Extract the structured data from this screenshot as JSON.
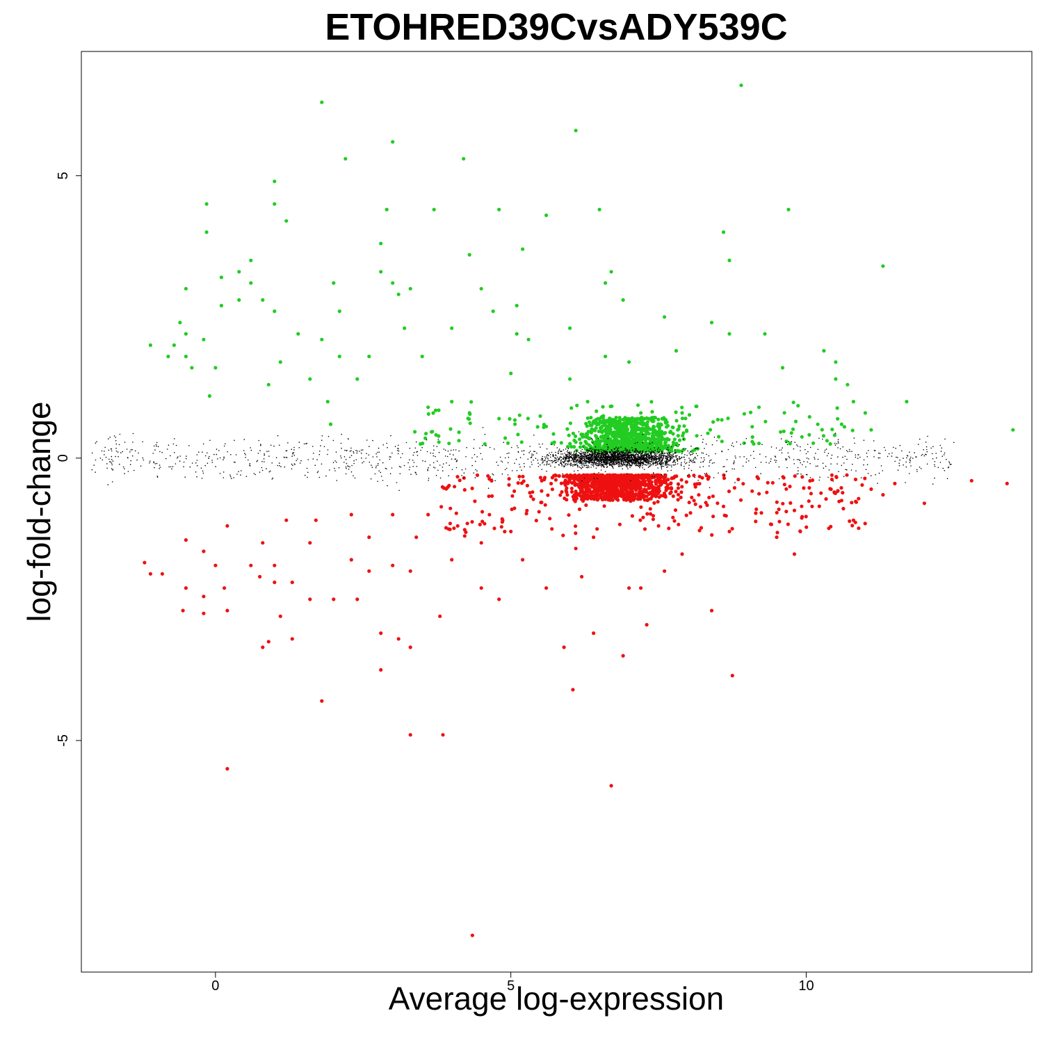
{
  "chart_data": {
    "type": "scatter",
    "title": "ETOHRED39CvsADY539C",
    "xlabel": "Average log-expression",
    "ylabel": "log-fold-change",
    "xlim": [
      -2.27,
      13.82
    ],
    "ylim": [
      -9.1,
      7.2
    ],
    "xticks": [
      0,
      5,
      10
    ],
    "yticks": [
      5,
      0,
      -5
    ],
    "x_tick_labels": [
      "0",
      "5",
      "10"
    ],
    "y_tick_labels": [
      "5",
      "0",
      "-5"
    ],
    "grid": false,
    "legend": null,
    "colors": {
      "up": "#22cc22",
      "down": "#ee1111",
      "ns": "#000000"
    },
    "series": [
      {
        "role": "up",
        "points": [
          [
            8.9,
            6.6
          ],
          [
            1.8,
            6.3
          ],
          [
            6.1,
            5.8
          ],
          [
            3.0,
            5.6
          ],
          [
            2.2,
            5.3
          ],
          [
            4.2,
            5.3
          ],
          [
            1.0,
            4.9
          ],
          [
            -0.15,
            4.5
          ],
          [
            1.0,
            4.5
          ],
          [
            1.2,
            4.2
          ],
          [
            2.9,
            4.4
          ],
          [
            3.7,
            4.4
          ],
          [
            4.8,
            4.4
          ],
          [
            5.6,
            4.3
          ],
          [
            6.5,
            4.4
          ],
          [
            9.7,
            4.4
          ],
          [
            -0.15,
            4.0
          ],
          [
            8.6,
            4.0
          ],
          [
            5.2,
            3.7
          ],
          [
            2.8,
            3.8
          ],
          [
            4.3,
            3.6
          ],
          [
            0.6,
            3.5
          ],
          [
            8.7,
            3.5
          ],
          [
            11.3,
            3.4
          ],
          [
            6.7,
            3.3
          ],
          [
            0.4,
            3.3
          ],
          [
            2.8,
            3.3
          ],
          [
            0.1,
            3.2
          ],
          [
            2.0,
            3.1
          ],
          [
            3.0,
            3.1
          ],
          [
            4.5,
            3.0
          ],
          [
            -0.5,
            3.0
          ],
          [
            3.1,
            2.9
          ],
          [
            3.3,
            3.0
          ],
          [
            6.6,
            3.1
          ],
          [
            0.6,
            3.1
          ],
          [
            0.4,
            2.8
          ],
          [
            0.8,
            2.8
          ],
          [
            6.9,
            2.8
          ],
          [
            0.1,
            2.7
          ],
          [
            1.0,
            2.6
          ],
          [
            2.1,
            2.6
          ],
          [
            4.7,
            2.6
          ],
          [
            5.1,
            2.7
          ],
          [
            7.6,
            2.5
          ],
          [
            8.4,
            2.4
          ],
          [
            -0.6,
            2.4
          ],
          [
            3.2,
            2.3
          ],
          [
            4.0,
            2.3
          ],
          [
            6.0,
            2.3
          ],
          [
            9.3,
            2.2
          ],
          [
            -0.5,
            2.2
          ],
          [
            1.4,
            2.2
          ],
          [
            1.8,
            2.1
          ],
          [
            -0.2,
            2.1
          ],
          [
            -1.1,
            2.0
          ],
          [
            -0.7,
            2.0
          ],
          [
            5.3,
            2.1
          ],
          [
            5.1,
            2.2
          ],
          [
            8.7,
            2.2
          ],
          [
            10.3,
            1.9
          ],
          [
            7.8,
            1.9
          ],
          [
            -0.5,
            1.8
          ],
          [
            -0.8,
            1.8
          ],
          [
            2.1,
            1.8
          ],
          [
            2.6,
            1.8
          ],
          [
            3.5,
            1.8
          ],
          [
            6.6,
            1.8
          ],
          [
            7.0,
            1.7
          ],
          [
            9.6,
            1.6
          ],
          [
            10.5,
            1.7
          ],
          [
            -0.4,
            1.6
          ],
          [
            0.0,
            1.6
          ],
          [
            1.1,
            1.7
          ],
          [
            1.6,
            1.4
          ],
          [
            2.4,
            1.4
          ],
          [
            5.0,
            1.5
          ],
          [
            6.0,
            1.4
          ],
          [
            10.5,
            1.4
          ],
          [
            10.7,
            1.3
          ],
          [
            11.7,
            1.0
          ],
          [
            13.5,
            0.5
          ],
          [
            0.9,
            1.3
          ],
          [
            1.9,
            1.0
          ],
          [
            -0.1,
            1.1
          ],
          [
            10.8,
            1.0
          ],
          [
            11.0,
            0.8
          ],
          [
            1.95,
            0.6
          ],
          [
            4.3,
            0.8
          ],
          [
            4.8,
            0.7
          ],
          [
            7.2,
            0.8
          ],
          [
            3.6,
            0.9
          ],
          [
            4.0,
            1.0
          ],
          [
            6.3,
            1.0
          ],
          [
            7.9,
            0.8
          ],
          [
            9.2,
            0.9
          ],
          [
            10.6,
            0.6
          ],
          [
            11.1,
            0.5
          ]
        ]
      },
      {
        "role": "down",
        "points": [
          [
            4.35,
            -8.45
          ],
          [
            0.2,
            -5.5
          ],
          [
            6.7,
            -5.8
          ],
          [
            3.3,
            -4.9
          ],
          [
            3.85,
            -4.9
          ],
          [
            6.05,
            -4.1
          ],
          [
            1.8,
            -4.3
          ],
          [
            8.75,
            -3.85
          ],
          [
            2.8,
            -3.75
          ],
          [
            3.3,
            -3.35
          ],
          [
            0.8,
            -3.35
          ],
          [
            6.9,
            -3.5
          ],
          [
            5.9,
            -3.35
          ],
          [
            1.3,
            -3.2
          ],
          [
            2.8,
            -3.1
          ],
          [
            6.4,
            -3.1
          ],
          [
            3.1,
            -3.2
          ],
          [
            0.9,
            -3.25
          ],
          [
            7.3,
            -2.95
          ],
          [
            1.1,
            -2.8
          ],
          [
            -0.55,
            -2.7
          ],
          [
            -0.2,
            -2.75
          ],
          [
            0.2,
            -2.7
          ],
          [
            3.8,
            -2.8
          ],
          [
            8.4,
            -2.7
          ],
          [
            -0.5,
            -2.3
          ],
          [
            -0.2,
            -2.45
          ],
          [
            0.15,
            -2.3
          ],
          [
            4.8,
            -2.5
          ],
          [
            4.5,
            -2.3
          ],
          [
            1.6,
            -2.5
          ],
          [
            2.0,
            -2.5
          ],
          [
            2.4,
            -2.5
          ],
          [
            7.2,
            -2.3
          ],
          [
            -1.1,
            -2.05
          ],
          [
            -0.9,
            -2.05
          ],
          [
            0.75,
            -2.1
          ],
          [
            1.0,
            -2.2
          ],
          [
            1.3,
            -2.2
          ],
          [
            2.6,
            -2.0
          ],
          [
            3.3,
            -2.0
          ],
          [
            5.6,
            -2.3
          ],
          [
            7.0,
            -2.3
          ],
          [
            -1.2,
            -1.85
          ],
          [
            0.0,
            -1.9
          ],
          [
            0.6,
            -1.9
          ],
          [
            1.0,
            -1.9
          ],
          [
            2.3,
            -1.8
          ],
          [
            3.0,
            -1.9
          ],
          [
            4.0,
            -1.8
          ],
          [
            5.2,
            -1.8
          ],
          [
            6.2,
            -2.1
          ],
          [
            7.6,
            -2.0
          ],
          [
            9.8,
            -1.7
          ],
          [
            -0.5,
            -1.45
          ],
          [
            -0.2,
            -1.65
          ],
          [
            0.2,
            -1.2
          ],
          [
            0.8,
            -1.5
          ],
          [
            1.6,
            -1.5
          ],
          [
            2.6,
            -1.4
          ],
          [
            3.4,
            -1.4
          ],
          [
            4.5,
            -1.5
          ],
          [
            6.1,
            -1.6
          ],
          [
            7.9,
            -1.7
          ],
          [
            9.5,
            -1.4
          ],
          [
            10.8,
            -1.1
          ],
          [
            12.0,
            -0.8
          ],
          [
            12.8,
            -0.4
          ],
          [
            13.4,
            -0.45
          ],
          [
            11.5,
            -0.45
          ],
          [
            11.1,
            -0.55
          ],
          [
            9.9,
            -1.3
          ],
          [
            8.7,
            -1.3
          ],
          [
            4.1,
            -1.2
          ],
          [
            3.6,
            -1.0
          ],
          [
            2.3,
            -1.0
          ],
          [
            1.7,
            -1.1
          ],
          [
            3.0,
            -1.0
          ],
          [
            1.2,
            -1.1
          ],
          [
            7.5,
            -1.2
          ],
          [
            6.4,
            -1.4
          ],
          [
            5.0,
            -1.3
          ],
          [
            11.3,
            -0.65
          ],
          [
            10.6,
            -0.75
          ]
        ]
      }
    ],
    "clusters": [
      {
        "role": "up",
        "count": 900,
        "x_range": [
          5.1,
          9.2
        ],
        "y_range": [
          0.12,
          0.72
        ],
        "x_center": 7.0
      },
      {
        "role": "up",
        "count": 120,
        "x_range": [
          3.3,
          10.8
        ],
        "y_range": [
          0.25,
          1.0
        ]
      },
      {
        "role": "down",
        "count": 900,
        "x_range": [
          5.0,
          9.6
        ],
        "y_range": [
          -0.75,
          -0.3
        ],
        "x_center": 6.8
      },
      {
        "role": "down",
        "count": 260,
        "x_range": [
          3.8,
          11.0
        ],
        "y_range": [
          -1.4,
          -0.3
        ]
      },
      {
        "role": "ns",
        "count": 2200,
        "x_range": [
          4.2,
          9.8
        ],
        "y_range": [
          -0.4,
          0.4
        ],
        "x_center": 6.8
      },
      {
        "role": "ns",
        "count": 1000,
        "x_range": [
          -2.1,
          12.5
        ],
        "y_range": [
          -1.1,
          1.1
        ]
      }
    ]
  }
}
